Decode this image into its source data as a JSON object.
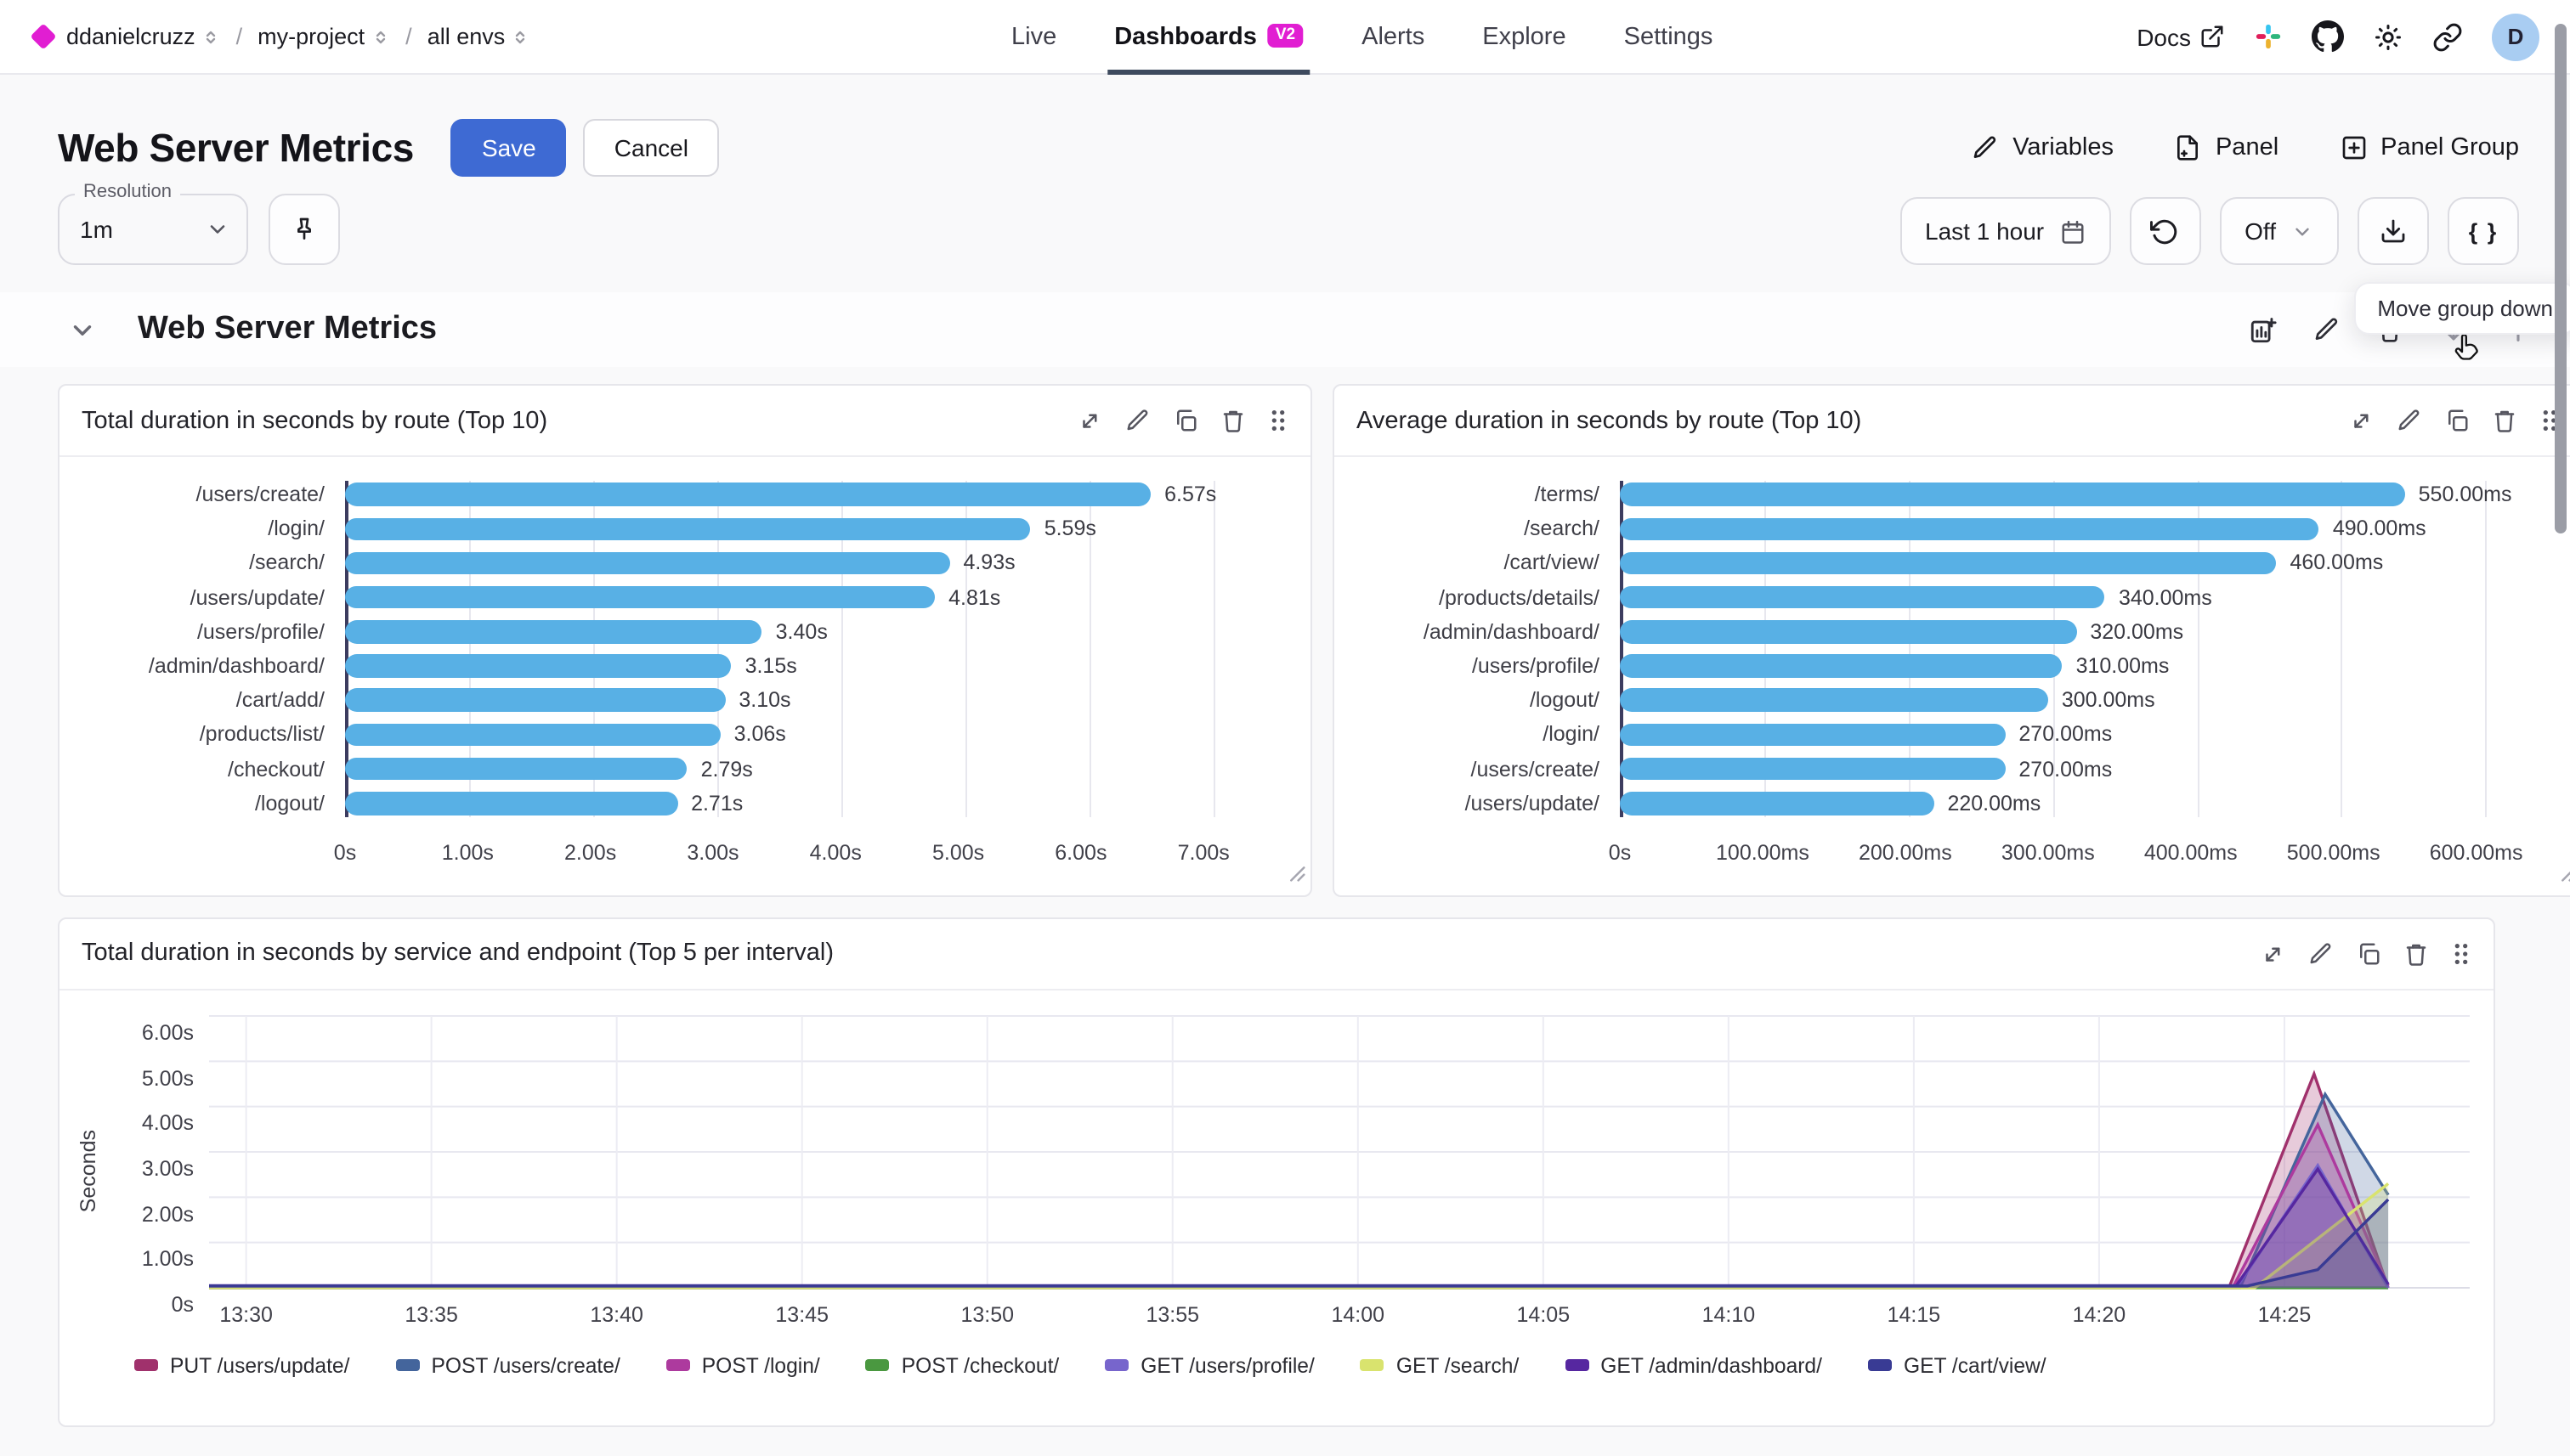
{
  "nav": {
    "breadcrumb": [
      {
        "label": "ddanielcruzz"
      },
      {
        "label": "my-project"
      },
      {
        "label": "all envs"
      }
    ],
    "tabs": [
      {
        "label": "Live",
        "active": false
      },
      {
        "label": "Dashboards",
        "active": true,
        "badge": "V2"
      },
      {
        "label": "Alerts",
        "active": false
      },
      {
        "label": "Explore",
        "active": false
      },
      {
        "label": "Settings",
        "active": false
      }
    ],
    "docs_label": "Docs",
    "avatar_initial": "D"
  },
  "header": {
    "title": "Web Server Metrics",
    "save_label": "Save",
    "cancel_label": "Cancel",
    "variables_label": "Variables",
    "panel_label": "Panel",
    "panel_group_label": "Panel Group"
  },
  "toolbar": {
    "resolution_label": "Resolution",
    "resolution_value": "1m",
    "time_range": "Last 1 hour",
    "refresh_value": "Off",
    "braces_label": "{ }",
    "tooltip": "Move group down"
  },
  "section": {
    "title": "Web Server Metrics"
  },
  "colors": {
    "accent_blue": "#3e6ad3",
    "brand_magenta": "#e11ed2",
    "bar_blue": "#58b0e5"
  },
  "chart_data": [
    {
      "type": "bar",
      "orientation": "horizontal",
      "title": "Total duration in seconds by route (Top 10)",
      "categories": [
        "/users/create/",
        "/login/",
        "/search/",
        "/users/update/",
        "/users/profile/",
        "/admin/dashboard/",
        "/cart/add/",
        "/products/list/",
        "/checkout/",
        "/logout/"
      ],
      "values": [
        6.57,
        5.59,
        4.93,
        4.81,
        3.4,
        3.15,
        3.1,
        3.06,
        2.79,
        2.71
      ],
      "value_labels": [
        "6.57s",
        "5.59s",
        "4.93s",
        "4.81s",
        "3.40s",
        "3.15s",
        "3.10s",
        "3.06s",
        "2.79s",
        "2.71s"
      ],
      "xlim": [
        0,
        7.65
      ],
      "ticks": [
        {
          "v": 0,
          "label": "0s"
        },
        {
          "v": 1,
          "label": "1.00s"
        },
        {
          "v": 2,
          "label": "2.00s"
        },
        {
          "v": 3,
          "label": "3.00s"
        },
        {
          "v": 4,
          "label": "4.00s"
        },
        {
          "v": 5,
          "label": "5.00s"
        },
        {
          "v": 6,
          "label": "6.00s"
        },
        {
          "v": 7,
          "label": "7.00s"
        }
      ]
    },
    {
      "type": "bar",
      "orientation": "horizontal",
      "title": "Average duration in seconds by route (Top 10)",
      "categories": [
        "/terms/",
        "/search/",
        "/cart/view/",
        "/products/details/",
        "/admin/dashboard/",
        "/users/profile/",
        "/logout/",
        "/login/",
        "/users/create/",
        "/users/update/"
      ],
      "values": [
        550,
        490,
        460,
        340,
        320,
        310,
        300,
        270,
        270,
        220
      ],
      "value_labels": [
        "550.00ms",
        "490.00ms",
        "460.00ms",
        "340.00ms",
        "320.00ms",
        "310.00ms",
        "300.00ms",
        "270.00ms",
        "270.00ms",
        "220.00ms"
      ],
      "xlim": [
        0,
        655
      ],
      "ticks": [
        {
          "v": 0,
          "label": "0s"
        },
        {
          "v": 100,
          "label": "100.00ms"
        },
        {
          "v": 200,
          "label": "200.00ms"
        },
        {
          "v": 300,
          "label": "300.00ms"
        },
        {
          "v": 400,
          "label": "400.00ms"
        },
        {
          "v": 500,
          "label": "500.00ms"
        },
        {
          "v": 600,
          "label": "600.00ms"
        }
      ]
    },
    {
      "type": "area",
      "title": "Total duration in seconds by service and endpoint (Top 5 per interval)",
      "ylabel": "Seconds",
      "ylim": [
        0,
        6
      ],
      "yticks": [
        {
          "v": 0,
          "label": "0s"
        },
        {
          "v": 1,
          "label": "1.00s"
        },
        {
          "v": 2,
          "label": "2.00s"
        },
        {
          "v": 3,
          "label": "3.00s"
        },
        {
          "v": 4,
          "label": "4.00s"
        },
        {
          "v": 5,
          "label": "5.00s"
        },
        {
          "v": 6,
          "label": "6.00s"
        }
      ],
      "xlim_minutes": [
        0,
        61
      ],
      "xticks": [
        {
          "m": 1,
          "label": "13:30"
        },
        {
          "m": 6,
          "label": "13:35"
        },
        {
          "m": 11,
          "label": "13:40"
        },
        {
          "m": 16,
          "label": "13:45"
        },
        {
          "m": 21,
          "label": "13:50"
        },
        {
          "m": 26,
          "label": "13:55"
        },
        {
          "m": 31,
          "label": "14:00"
        },
        {
          "m": 36,
          "label": "14:05"
        },
        {
          "m": 41,
          "label": "14:10"
        },
        {
          "m": 46,
          "label": "14:15"
        },
        {
          "m": 51,
          "label": "14:20"
        },
        {
          "m": 56,
          "label": "14:25"
        }
      ],
      "series": [
        {
          "name": "PUT /users/update/",
          "color": "#a0316c",
          "points": [
            [
              0,
              0
            ],
            [
              54.5,
              0
            ],
            [
              56.8,
              4.72
            ],
            [
              58.8,
              0
            ]
          ]
        },
        {
          "name": "POST /users/create/",
          "color": "#44659c",
          "points": [
            [
              0,
              0
            ],
            [
              54.8,
              0
            ],
            [
              57.1,
              4.27
            ],
            [
              58.8,
              2.05
            ]
          ]
        },
        {
          "name": "POST /login/",
          "color": "#ad3a9e",
          "points": [
            [
              0,
              0
            ],
            [
              54.6,
              0
            ],
            [
              56.9,
              3.6
            ],
            [
              58.8,
              0.05
            ]
          ]
        },
        {
          "name": "POST /checkout/",
          "color": "#4a9840",
          "points": [
            [
              0,
              0
            ],
            [
              58.8,
              0
            ]
          ]
        },
        {
          "name": "GET /users/profile/",
          "color": "#7765cc",
          "points": [
            [
              0,
              0
            ],
            [
              54.7,
              0
            ],
            [
              56.9,
              2.7
            ],
            [
              58.8,
              0
            ]
          ]
        },
        {
          "name": "GET /search/",
          "color": "#d9e36e",
          "points": [
            [
              0,
              0
            ],
            [
              55.2,
              0
            ],
            [
              58.8,
              2.3
            ]
          ]
        },
        {
          "name": "GET /admin/dashboard/",
          "color": "#5627a0",
          "points": [
            [
              0,
              0.05
            ],
            [
              54.7,
              0.05
            ],
            [
              56.9,
              2.62
            ],
            [
              58.8,
              0.08
            ]
          ]
        },
        {
          "name": "GET /cart/view/",
          "color": "#393b94",
          "points": [
            [
              0,
              0.04
            ],
            [
              55,
              0.04
            ],
            [
              56.9,
              0.4
            ],
            [
              58.8,
              1.95
            ]
          ]
        }
      ]
    }
  ]
}
